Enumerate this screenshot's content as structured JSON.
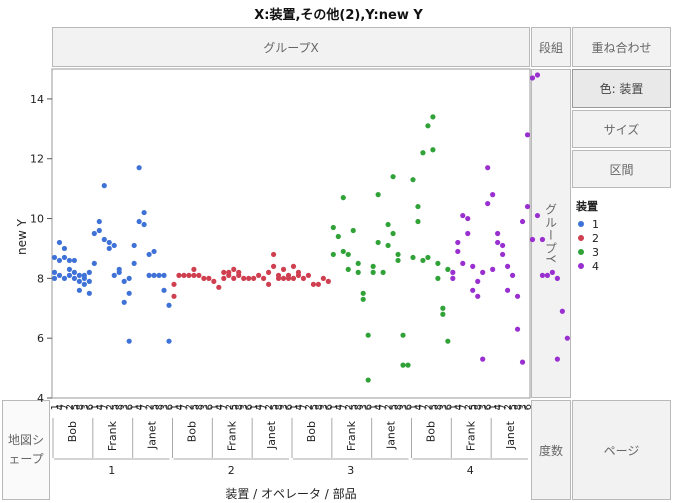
{
  "title": "X:装置,その他(2),Y:new Y",
  "zones": {
    "group_x": "グループX",
    "wrap": "段組",
    "overlay": "重ね合わせ",
    "color": "色: 装置",
    "size": "サイズ",
    "interval": "区間",
    "group_y": "グループY",
    "map_shape": "地図シェープ",
    "freq": "度数",
    "page": "ページ"
  },
  "legend": {
    "title": "装置",
    "items": [
      {
        "label": "1",
        "color": "#3f72d6"
      },
      {
        "label": "2",
        "color": "#cf3f4f"
      },
      {
        "label": "3",
        "color": "#30a238"
      },
      {
        "label": "4",
        "color": "#9a2fd0"
      }
    ]
  },
  "chart_data": {
    "type": "scatter",
    "ylabel": "new Y",
    "xlabel": "装置 / オペレータ / 部品",
    "ylim": [
      4,
      15
    ],
    "yticks": [
      4,
      6,
      8,
      10,
      12,
      14
    ],
    "grid": false,
    "categories_level1": [
      "1",
      "2",
      "3",
      "4"
    ],
    "categories_level2": [
      "Bob",
      "Frank",
      "Janet"
    ],
    "categories_level3": [
      "1",
      "4",
      "7",
      "2",
      "5",
      "8",
      "3",
      "6"
    ],
    "series": [
      {
        "name": "1",
        "points": [
          [
            0,
            8.2
          ],
          [
            0,
            8.7
          ],
          [
            0,
            8.0
          ],
          [
            1,
            9.2
          ],
          [
            1,
            8.6
          ],
          [
            1,
            8.1
          ],
          [
            2,
            8.7
          ],
          [
            2,
            8.0
          ],
          [
            2,
            9.0
          ],
          [
            3,
            8.6
          ],
          [
            3,
            8.1
          ],
          [
            3,
            8.3
          ],
          [
            4,
            8.6
          ],
          [
            4,
            8.2
          ],
          [
            4,
            8.0
          ],
          [
            5,
            8.1
          ],
          [
            5,
            7.6
          ],
          [
            5,
            7.9
          ],
          [
            6,
            7.8
          ],
          [
            6,
            8.1
          ],
          [
            6,
            8.0
          ],
          [
            7,
            7.5
          ],
          [
            7,
            8.2
          ],
          [
            7,
            7.9
          ],
          [
            8,
            8.5
          ],
          [
            8,
            9.5
          ],
          [
            9,
            9.9
          ],
          [
            9,
            9.6
          ],
          [
            10,
            11.1
          ],
          [
            10,
            9.3
          ],
          [
            11,
            9.0
          ],
          [
            11,
            9.2
          ],
          [
            12,
            9.1
          ],
          [
            12,
            8.1
          ],
          [
            13,
            8.3
          ],
          [
            13,
            8.2
          ],
          [
            14,
            7.9
          ],
          [
            14,
            7.2
          ],
          [
            15,
            5.9
          ],
          [
            15,
            7.5
          ],
          [
            15,
            8.0
          ],
          [
            16,
            9.1
          ],
          [
            16,
            8.5
          ],
          [
            17,
            11.7
          ],
          [
            17,
            9.9
          ],
          [
            18,
            10.2
          ],
          [
            18,
            9.8
          ],
          [
            19,
            8.1
          ],
          [
            19,
            8.8
          ],
          [
            20,
            8.1
          ],
          [
            20,
            8.9
          ],
          [
            21,
            8.1
          ],
          [
            22,
            7.6
          ],
          [
            22,
            8.1
          ],
          [
            23,
            7.1
          ],
          [
            23,
            5.9
          ]
        ]
      },
      {
        "name": "2",
        "points": [
          [
            24,
            7.4
          ],
          [
            24,
            7.8
          ],
          [
            25,
            8.1
          ],
          [
            26,
            8.1
          ],
          [
            27,
            8.1
          ],
          [
            28,
            8.1
          ],
          [
            28,
            8.3
          ],
          [
            29,
            8.1
          ],
          [
            30,
            8.0
          ],
          [
            31,
            8.0
          ],
          [
            32,
            7.9
          ],
          [
            33,
            7.7
          ],
          [
            34,
            8.0
          ],
          [
            34,
            8.2
          ],
          [
            35,
            8.1
          ],
          [
            35,
            8.2
          ],
          [
            36,
            8.3
          ],
          [
            36,
            8.0
          ],
          [
            37,
            8.1
          ],
          [
            37,
            8.2
          ],
          [
            38,
            8.0
          ],
          [
            39,
            8.0
          ],
          [
            40,
            8.0
          ],
          [
            41,
            8.1
          ],
          [
            42,
            8.0
          ],
          [
            43,
            7.8
          ],
          [
            43,
            8.2
          ],
          [
            44,
            8.8
          ],
          [
            44,
            8.4
          ],
          [
            45,
            8.1
          ],
          [
            45,
            8.0
          ],
          [
            46,
            8.3
          ],
          [
            46,
            8.0
          ],
          [
            47,
            8.1
          ],
          [
            47,
            8.0
          ],
          [
            48,
            8.4
          ],
          [
            48,
            8.0
          ],
          [
            49,
            8.1
          ],
          [
            49,
            8.2
          ],
          [
            50,
            8.0
          ],
          [
            51,
            8.1
          ],
          [
            52,
            7.8
          ],
          [
            53,
            7.8
          ],
          [
            54,
            8.0
          ],
          [
            55,
            7.9
          ]
        ]
      },
      {
        "name": "3",
        "points": [
          [
            56,
            9.7
          ],
          [
            56,
            8.8
          ],
          [
            57,
            9.4
          ],
          [
            58,
            10.7
          ],
          [
            58,
            8.9
          ],
          [
            59,
            8.8
          ],
          [
            59,
            8.3
          ],
          [
            60,
            9.6
          ],
          [
            61,
            8.5
          ],
          [
            61,
            8.2
          ],
          [
            62,
            7.5
          ],
          [
            62,
            7.3
          ],
          [
            63,
            6.1
          ],
          [
            63,
            4.6
          ],
          [
            64,
            8.4
          ],
          [
            64,
            8.2
          ],
          [
            65,
            10.8
          ],
          [
            65,
            9.2
          ],
          [
            66,
            8.2
          ],
          [
            67,
            9.8
          ],
          [
            67,
            9.1
          ],
          [
            68,
            11.4
          ],
          [
            68,
            9.5
          ],
          [
            69,
            8.6
          ],
          [
            69,
            8.8
          ],
          [
            70,
            6.1
          ],
          [
            70,
            5.1
          ],
          [
            71,
            5.1
          ],
          [
            72,
            11.3
          ],
          [
            72,
            8.7
          ],
          [
            73,
            10.4
          ],
          [
            73,
            9.9
          ],
          [
            74,
            12.2
          ],
          [
            74,
            8.6
          ],
          [
            75,
            13.1
          ],
          [
            75,
            8.7
          ],
          [
            76,
            13.4
          ],
          [
            76,
            12.3
          ],
          [
            77,
            8.5
          ],
          [
            77,
            8.0
          ],
          [
            78,
            7.0
          ],
          [
            78,
            6.8
          ],
          [
            79,
            5.9
          ],
          [
            79,
            8.3
          ]
        ]
      },
      {
        "name": "4",
        "points": [
          [
            80,
            8.2
          ],
          [
            80,
            8.0
          ],
          [
            81,
            9.2
          ],
          [
            81,
            8.9
          ],
          [
            82,
            8.5
          ],
          [
            82,
            10.1
          ],
          [
            83,
            10.0
          ],
          [
            83,
            9.5
          ],
          [
            84,
            8.4
          ],
          [
            84,
            7.6
          ],
          [
            85,
            7.4
          ],
          [
            85,
            7.9
          ],
          [
            86,
            5.3
          ],
          [
            86,
            8.2
          ],
          [
            87,
            11.7
          ],
          [
            87,
            10.5
          ],
          [
            88,
            10.8
          ],
          [
            88,
            8.3
          ],
          [
            89,
            9.5
          ],
          [
            89,
            9.2
          ],
          [
            90,
            8.8
          ],
          [
            90,
            9.1
          ],
          [
            91,
            7.6
          ],
          [
            91,
            8.4
          ],
          [
            92,
            8.1
          ],
          [
            93,
            6.3
          ],
          [
            93,
            7.4
          ],
          [
            94,
            5.2
          ],
          [
            94,
            9.9
          ],
          [
            95,
            12.8
          ],
          [
            95,
            10.4
          ],
          [
            96,
            9.3
          ],
          [
            96,
            14.7
          ],
          [
            97,
            10.1
          ],
          [
            97,
            14.8
          ],
          [
            98,
            9.3
          ],
          [
            98,
            8.1
          ],
          [
            99,
            8.1
          ],
          [
            100,
            8.2
          ],
          [
            101,
            5.3
          ],
          [
            101,
            8.0
          ],
          [
            102,
            6.9
          ],
          [
            103,
            6.0
          ]
        ]
      }
    ]
  }
}
